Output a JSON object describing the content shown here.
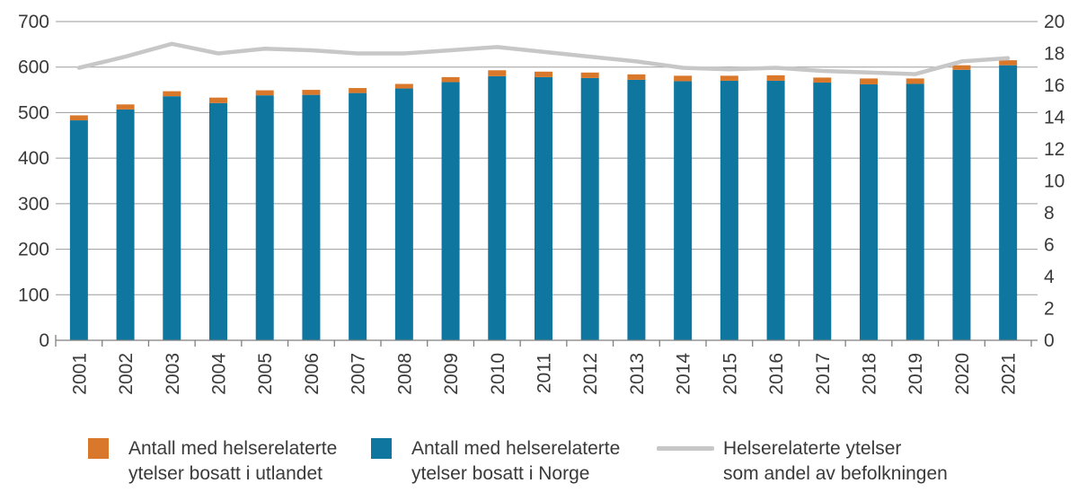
{
  "chart_data": {
    "type": "bar",
    "stacked": true,
    "title": "",
    "categories": [
      "2001",
      "2002",
      "2003",
      "2004",
      "2005",
      "2006",
      "2007",
      "2008",
      "2009",
      "2010",
      "2011",
      "2012",
      "2013",
      "2014",
      "2015",
      "2016",
      "2017",
      "2018",
      "2019",
      "2020",
      "2021"
    ],
    "series": [
      {
        "name": "Antall med helserelaterte ytelser bosatt i Norge",
        "type": "bar",
        "axis": "left",
        "color": "#0f76a0",
        "values": [
          483,
          507,
          536,
          521,
          538,
          539,
          543,
          553,
          567,
          580,
          578,
          576,
          572,
          569,
          570,
          570,
          566,
          562,
          563,
          594,
          604
        ]
      },
      {
        "name": "Antall med helserelaterte ytelser bosatt i utlandet",
        "type": "bar",
        "axis": "left",
        "color": "#d9782a",
        "values": [
          11,
          11,
          11,
          12,
          11,
          11,
          11,
          10,
          11,
          13,
          12,
          12,
          12,
          12,
          11,
          12,
          11,
          13,
          12,
          10,
          11
        ]
      },
      {
        "name": "Helserelaterte ytelser som andel av befolkningen",
        "type": "line",
        "axis": "right",
        "color": "#c7c7c7",
        "values": [
          17.1,
          17.8,
          18.6,
          18.0,
          18.3,
          18.2,
          18.0,
          18.0,
          18.2,
          18.4,
          18.1,
          17.8,
          17.5,
          17.1,
          17.0,
          17.1,
          16.9,
          16.8,
          16.7,
          17.5,
          17.7
        ]
      }
    ],
    "left_axis": {
      "min": 0,
      "max": 700,
      "step": 100,
      "tick_labels": [
        "0",
        "100",
        "200",
        "300",
        "400",
        "500",
        "600",
        "700"
      ]
    },
    "right_axis": {
      "min": 0,
      "max": 20,
      "step": 2,
      "tick_labels": [
        "0",
        "2",
        "4",
        "6",
        "8",
        "10",
        "12",
        "14",
        "16",
        "18",
        "20"
      ]
    },
    "grid": "horizontal",
    "legend_position": "bottom"
  },
  "legend": {
    "items": [
      {
        "swatch": "square",
        "color": "#d9782a",
        "line1": "Antall med helserelaterte",
        "line2": "ytelser bosatt i utlandet"
      },
      {
        "swatch": "square",
        "color": "#0f76a0",
        "line1": "Antall med helserelaterte",
        "line2": "ytelser bosatt i Norge"
      },
      {
        "swatch": "line",
        "color": "#c7c7c7",
        "line1": "Helserelaterte ytelser",
        "line2": "som andel av befolkningen"
      }
    ]
  },
  "colors": {
    "bar_norge": "#0f76a0",
    "bar_utlandet": "#d9782a",
    "line_andel": "#c7c7c7",
    "gridline": "#9b9b9b",
    "axis": "#7f7f7f",
    "text": "#3a3a3a"
  }
}
